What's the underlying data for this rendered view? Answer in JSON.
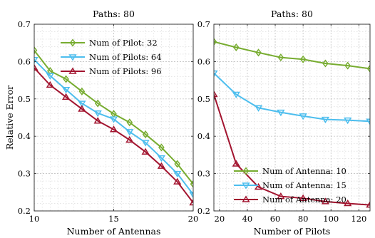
{
  "chart_data": [
    {
      "type": "line",
      "title": "Paths: 80",
      "xlabel": "Number of Antennas",
      "ylabel": "Relative Error",
      "xlim": [
        10,
        20
      ],
      "ylim": [
        0.2,
        0.7
      ],
      "xticks": [
        10,
        15,
        20
      ],
      "yticks": [
        0.2,
        0.3,
        0.4,
        0.5,
        0.6,
        0.7
      ],
      "grid": true,
      "legend_position": "top-right",
      "x": [
        10,
        11,
        12,
        13,
        14,
        15,
        16,
        17,
        18,
        19,
        20
      ],
      "series": [
        {
          "name": "Num of Pilot: 32",
          "color": "#77AC30",
          "marker": "diamond",
          "values": [
            0.63,
            0.575,
            0.553,
            0.52,
            0.488,
            0.46,
            0.437,
            0.405,
            0.37,
            0.326,
            0.272
          ]
        },
        {
          "name": "Num of Pilots: 64",
          "color": "#4DBEEE",
          "marker": "triangle-down",
          "values": [
            0.605,
            0.562,
            0.525,
            0.488,
            0.462,
            0.446,
            0.412,
            0.383,
            0.342,
            0.3,
            0.244
          ]
        },
        {
          "name": "Num of Pilots: 96",
          "color": "#A2142F",
          "marker": "triangle-up",
          "values": [
            0.583,
            0.537,
            0.505,
            0.473,
            0.441,
            0.418,
            0.39,
            0.358,
            0.32,
            0.278,
            0.222
          ]
        }
      ]
    },
    {
      "type": "line",
      "title": "Paths: 80",
      "xlabel": "Number of Pilots",
      "ylabel": "",
      "xlim": [
        16,
        128
      ],
      "ylim": [
        0.2,
        0.7
      ],
      "xticks": [
        20,
        40,
        60,
        80,
        100,
        120
      ],
      "yticks": [
        0.2,
        0.3,
        0.4,
        0.5,
        0.6,
        0.7
      ],
      "grid": true,
      "legend_position": "bottom-right",
      "x": [
        16,
        32,
        48,
        64,
        80,
        96,
        112,
        128
      ],
      "series": [
        {
          "name": "Num of Antenna: 10",
          "color": "#77AC30",
          "marker": "diamond",
          "values": [
            0.653,
            0.638,
            0.624,
            0.611,
            0.606,
            0.595,
            0.589,
            0.581
          ]
        },
        {
          "name": "Num of Antenna: 15",
          "color": "#4DBEEE",
          "marker": "triangle-down",
          "values": [
            0.569,
            0.512,
            0.476,
            0.464,
            0.454,
            0.445,
            0.443,
            0.44
          ]
        },
        {
          "name": "Num of Antenna: 20",
          "color": "#A2142F",
          "marker": "triangle-up",
          "values": [
            0.512,
            0.326,
            0.264,
            0.239,
            0.234,
            0.225,
            0.22,
            0.216
          ]
        }
      ]
    }
  ]
}
